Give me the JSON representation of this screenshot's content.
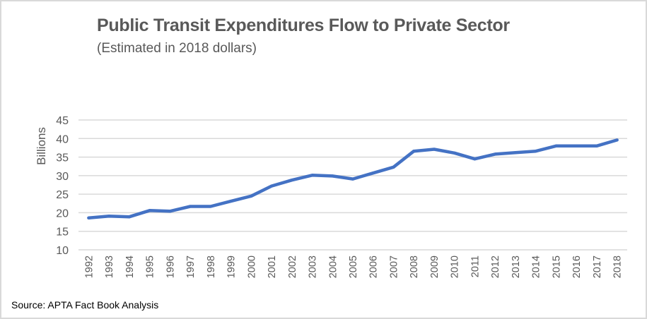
{
  "chart_data": {
    "type": "line",
    "title": "Public Transit Expenditures Flow to Private Sector",
    "subtitle": "(Estimated in 2018 dollars)",
    "xlabel": "",
    "ylabel": "Billions",
    "ylim": [
      10,
      45
    ],
    "yticks": [
      "10",
      "15",
      "20",
      "25",
      "30",
      "35",
      "40",
      "45"
    ],
    "ytick_values": [
      10,
      15,
      20,
      25,
      30,
      35,
      40,
      45
    ],
    "grid": true,
    "legend": "none",
    "categories": [
      "1992",
      "1993",
      "1994",
      "1995",
      "1996",
      "1997",
      "1998",
      "1999",
      "2000",
      "2001",
      "2002",
      "2003",
      "2004",
      "2005",
      "2006",
      "2007",
      "2008",
      "2009",
      "2010",
      "2011",
      "2012",
      "2013",
      "2014",
      "2015",
      "2016",
      "2017",
      "2018"
    ],
    "series": [
      {
        "name": "Expenditures",
        "color": "#4472c4",
        "values": [
          18.6,
          19.1,
          18.9,
          20.6,
          20.4,
          21.7,
          21.7,
          23.1,
          24.5,
          27.2,
          28.8,
          30.1,
          29.9,
          29.1,
          30.7,
          32.3,
          36.6,
          37.1,
          36.1,
          34.5,
          35.8,
          36.2,
          36.6,
          38.0,
          38.0,
          38.0,
          39.6
        ]
      }
    ],
    "source": "Source: APTA Fact Book Analysis"
  },
  "colors": {
    "line": "#4472c4",
    "grid": "#d9d9d9",
    "text": "#595959",
    "border": "#d9d9d9"
  }
}
